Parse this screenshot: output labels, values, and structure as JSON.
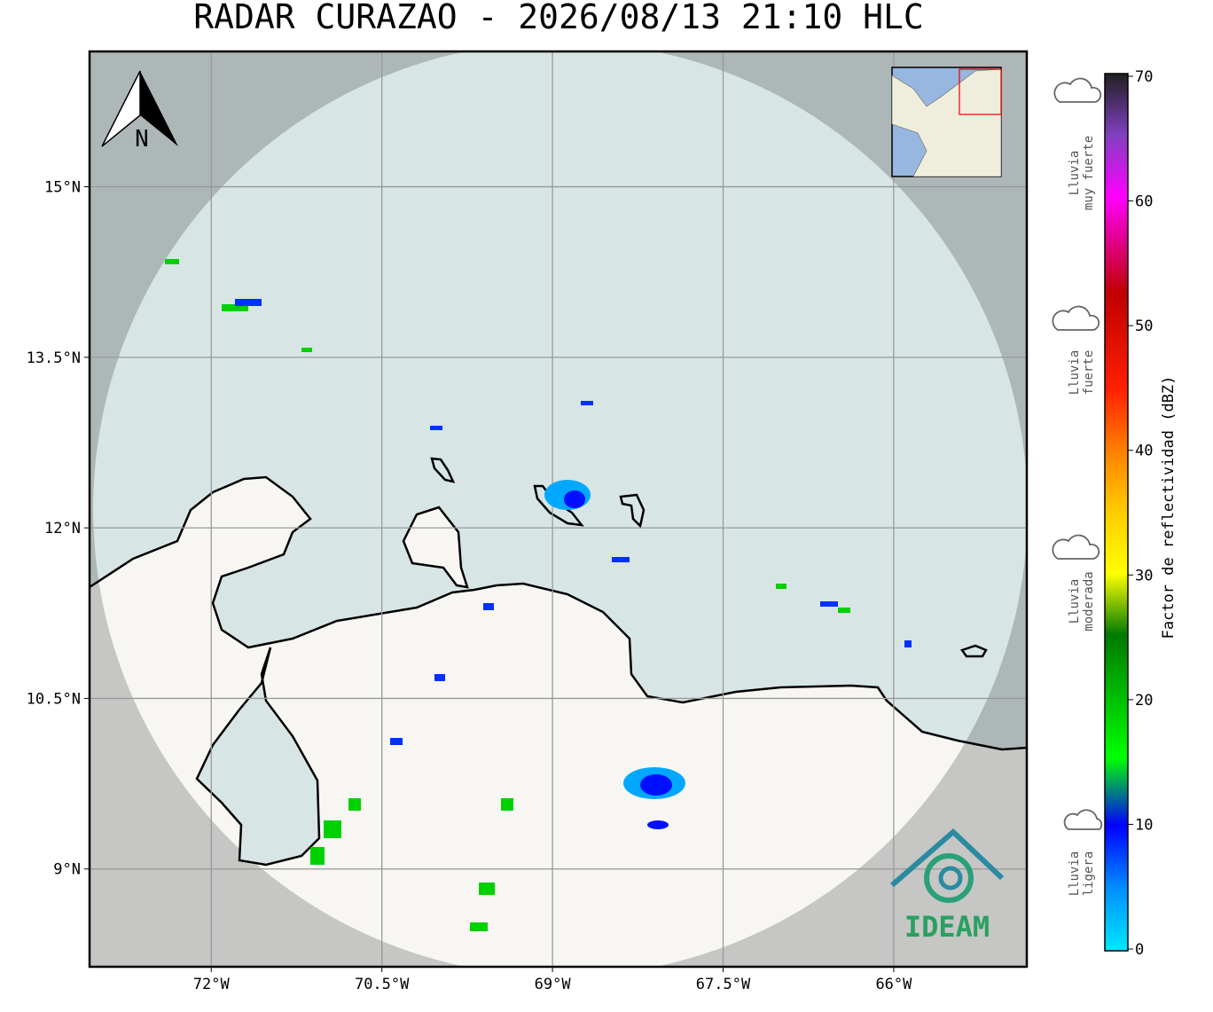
{
  "title": "RADAR CURAZAO - 2026/08/13 21:10 HLC",
  "map": {
    "lonlim": [
      -73.07,
      -64.83
    ],
    "latlim": [
      8.14,
      16.19
    ],
    "lat_ticks": [
      {
        "value": 15,
        "label": "15°N"
      },
      {
        "value": 13.5,
        "label": "13.5°N"
      },
      {
        "value": 12,
        "label": "12°N"
      },
      {
        "value": 10.5,
        "label": "10.5°N"
      },
      {
        "value": 9,
        "label": "9°N"
      }
    ],
    "lon_ticks": [
      {
        "value": -72,
        "label": "72°W"
      },
      {
        "value": -70.5,
        "label": "70.5°W"
      },
      {
        "value": -69,
        "label": "69°W"
      },
      {
        "value": -67.5,
        "label": "67.5°W"
      },
      {
        "value": -66,
        "label": "66°W"
      }
    ],
    "north": "N"
  },
  "colorbar": {
    "label": "Factor de reflectividad (dBZ)",
    "lim": [
      0,
      70
    ],
    "ticks": [
      0,
      10,
      20,
      30,
      40,
      50,
      60,
      70
    ]
  },
  "legend": [
    {
      "lines": [
        "Lluvia",
        "muy fuerte"
      ]
    },
    {
      "lines": [
        "Lluvia",
        "fuerte"
      ]
    },
    {
      "lines": [
        "Lluvia",
        "moderada"
      ]
    },
    {
      "lines": [
        "Lluvia",
        "ligera"
      ]
    }
  ],
  "logo": "IDEAM"
}
